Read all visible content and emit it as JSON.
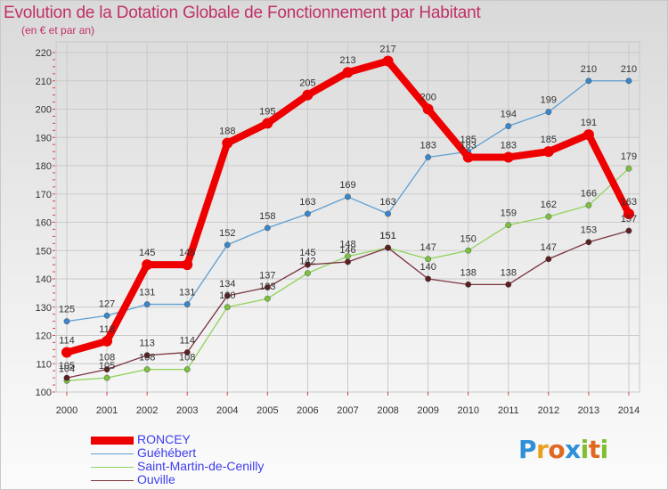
{
  "title": "Evolution de la Dotation Globale de Fonctionnement par Habitant",
  "subtitle": "(en € et par an)",
  "logo": {
    "letters": [
      "P",
      "r",
      "o",
      "x",
      "i",
      "t",
      "i"
    ],
    "colors": [
      "#2f8fd8",
      "#e8a020",
      "#e06820",
      "#2f8fd8",
      "#7fbf30",
      "#e06820",
      "#7fbf30"
    ]
  },
  "chart_data": {
    "type": "line",
    "title": "Evolution de la Dotation Globale de Fonctionnement par Habitant",
    "subtitle": "(en € et par an)",
    "xlabel": "",
    "ylabel": "",
    "ylim": [
      100,
      220
    ],
    "yticks": [
      100,
      110,
      120,
      130,
      140,
      150,
      160,
      170,
      180,
      190,
      200,
      210,
      220
    ],
    "grid": true,
    "legend_position": "bottom-left",
    "x": [
      2000,
      2001,
      2002,
      2003,
      2004,
      2005,
      2006,
      2007,
      2008,
      2009,
      2010,
      2011,
      2012,
      2013,
      2014
    ],
    "series": [
      {
        "name": "Guéhébert",
        "color": "#5e9fd2",
        "point_color": "#3a86c8",
        "values": [
          125,
          127,
          131,
          131,
          152,
          158,
          163,
          169,
          163,
          183,
          185,
          194,
          199,
          210,
          210
        ]
      },
      {
        "name": "Saint-Martin-de-Cenilly",
        "color": "#8fd35a",
        "point_color": "#7cc040",
        "values": [
          104,
          105,
          108,
          108,
          130,
          133,
          142,
          148,
          151,
          147,
          150,
          159,
          162,
          166,
          179
        ]
      },
      {
        "name": "Ouville",
        "color": "#7a3540",
        "point_color": "#5c1f22",
        "values": [
          105,
          108,
          113,
          114,
          134,
          137,
          145,
          146,
          151,
          140,
          138,
          138,
          147,
          153,
          157
        ]
      },
      {
        "name": "RONCEY",
        "color": "#ee0000",
        "point_color": "#ee0000",
        "values": [
          114,
          118,
          145,
          145,
          188,
          195,
          205,
          213,
          217,
          200,
          183,
          183,
          185,
          191,
          163
        ]
      }
    ]
  },
  "legend": [
    {
      "name": "RONCEY",
      "color": "#ee0000"
    },
    {
      "name": "Guéhébert",
      "color": "#5e9fd2"
    },
    {
      "name": "Saint-Martin-de-Cenilly",
      "color": "#8fd35a"
    },
    {
      "name": "Ouville",
      "color": "#7a3540"
    }
  ]
}
